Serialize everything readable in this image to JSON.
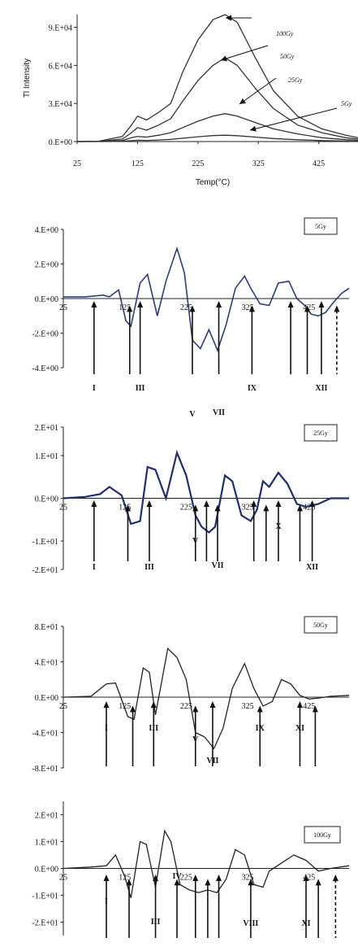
{
  "chart_data": [
    {
      "type": "line",
      "xlabel": "Temp(°C)",
      "ylabel": "Tl Intensity",
      "xlim": [
        25,
        490
      ],
      "ylim": [
        0,
        100000
      ],
      "xticks": [
        25,
        125,
        225,
        325,
        425
      ],
      "xtick_labels": [
        "25",
        "125",
        "225",
        "325",
        "425"
      ],
      "yticks": [
        0,
        30000,
        60000,
        90000
      ],
      "ytick_labels": [
        "0.E+00",
        "3.E+04",
        "6.E+04",
        "9.E+04"
      ],
      "x": [
        25,
        60,
        100,
        115,
        125,
        140,
        160,
        180,
        200,
        225,
        250,
        270,
        290,
        320,
        350,
        390,
        430,
        470,
        490
      ],
      "series": [
        {
          "name": "100Gy",
          "values": [
            0,
            200,
            4000,
            13000,
            20000,
            17000,
            23000,
            30000,
            55000,
            80000,
            96000,
            100000,
            94000,
            66000,
            40000,
            20000,
            10000,
            5000,
            3000
          ]
        },
        {
          "name": "50Gy",
          "values": [
            0,
            100,
            2000,
            7000,
            11000,
            9000,
            13000,
            18000,
            32000,
            48000,
            60000,
            66000,
            60000,
            42000,
            26000,
            13000,
            7000,
            3000,
            2000
          ]
        },
        {
          "name": "25Gy",
          "values": [
            0,
            50,
            800,
            3000,
            4000,
            3500,
            5000,
            7000,
            11000,
            16000,
            20000,
            22000,
            20000,
            15000,
            10000,
            6000,
            3000,
            1500,
            1000
          ]
        },
        {
          "name": "5Gy",
          "values": [
            0,
            10,
            200,
            700,
            1000,
            900,
            1200,
            1700,
            2600,
            3800,
            4700,
            5000,
            4600,
            3500,
            2400,
            1400,
            800,
            400,
            300
          ]
        }
      ]
    },
    {
      "type": "line",
      "legend": "5Gy",
      "xlim": [
        25,
        490
      ],
      "ylim": [
        -4,
        4
      ],
      "xticks": [
        25,
        125,
        225,
        325,
        425
      ],
      "xtick_labels": [
        "25",
        "125",
        "225",
        "325",
        "425"
      ],
      "yticks": [
        4,
        2,
        0,
        -2,
        -4
      ],
      "ytick_labels": [
        "4.E+00",
        "2.E+00",
        "0.E+00",
        "-2.E+00",
        "-4.E+00"
      ],
      "x": [
        25,
        60,
        90,
        100,
        115,
        127,
        135,
        150,
        162,
        178,
        192,
        210,
        222,
        235,
        248,
        262,
        276,
        290,
        305,
        320,
        330,
        345,
        360,
        375,
        392,
        405,
        418,
        428,
        440,
        452,
        465,
        478,
        490
      ],
      "values": [
        0.1,
        0.1,
        0.2,
        0.1,
        0.5,
        -1.3,
        -1.6,
        0.9,
        1.4,
        -1.0,
        1.0,
        2.9,
        1.5,
        -2.4,
        -2.9,
        -1.8,
        -3.0,
        -1.5,
        0.6,
        1.3,
        0.6,
        -0.3,
        -0.4,
        0.9,
        1.0,
        0.0,
        -0.4,
        -0.9,
        -1.0,
        -0.8,
        -0.2,
        0.3,
        0.6
      ],
      "peaks": [
        {
          "x": 75,
          "label": "I"
        },
        {
          "x": 133,
          "label": ""
        },
        {
          "x": 150,
          "label": "III"
        },
        {
          "x": 235,
          "label": "V"
        },
        {
          "x": 278,
          "label": "VII"
        },
        {
          "x": 332,
          "label": "IX"
        },
        {
          "x": 395,
          "label": ""
        },
        {
          "x": 422,
          "label": ""
        },
        {
          "x": 445,
          "label": "XII"
        },
        {
          "x": 470,
          "label": "",
          "dashed": true
        }
      ]
    },
    {
      "type": "line",
      "legend": "25Gy",
      "xlim": [
        25,
        490
      ],
      "ylim": [
        -25,
        25
      ],
      "xticks": [
        25,
        125,
        225,
        325,
        425
      ],
      "xtick_labels": [
        "25",
        "125",
        "225",
        "325",
        "425"
      ],
      "yticks": [
        25,
        15,
        0,
        -15,
        -25
      ],
      "ytick_labels": [
        "2.E+01",
        "1.E+01",
        "0.E+00",
        "-1.E+01",
        "-2.E+01"
      ],
      "x": [
        25,
        60,
        85,
        100,
        120,
        135,
        150,
        162,
        175,
        192,
        210,
        225,
        240,
        250,
        262,
        272,
        288,
        300,
        315,
        330,
        340,
        350,
        360,
        375,
        390,
        405,
        420,
        440,
        460,
        490
      ],
      "values": [
        0,
        0.5,
        1.5,
        4,
        1,
        -9,
        -8,
        11,
        10,
        0,
        16,
        8,
        -6,
        -10,
        -12,
        -10,
        8,
        6,
        -6,
        -8,
        -4,
        6,
        4,
        9,
        5,
        -2,
        -3,
        -2,
        0,
        0
      ],
      "peaks": [
        {
          "x": 75,
          "label": "I"
        },
        {
          "x": 130,
          "label": ""
        },
        {
          "x": 165,
          "label": "III"
        },
        {
          "x": 240,
          "label": "V"
        },
        {
          "x": 258,
          "label": ""
        },
        {
          "x": 276,
          "label": "VII"
        },
        {
          "x": 335,
          "label": ""
        },
        {
          "x": 355,
          "label": ""
        },
        {
          "x": 375,
          "label": "X"
        },
        {
          "x": 410,
          "label": ""
        },
        {
          "x": 430,
          "label": "XII"
        }
      ]
    },
    {
      "type": "line",
      "legend": "50Gy",
      "xlim": [
        25,
        490
      ],
      "ylim": [
        -80,
        80
      ],
      "xticks": [
        25,
        125,
        225,
        325,
        425
      ],
      "xtick_labels": [
        "25",
        "125",
        "225",
        "325",
        "425"
      ],
      "yticks": [
        80,
        40,
        0,
        -40,
        -80
      ],
      "ytick_labels": [
        "8.E+01",
        "4.E+01",
        "0.E+00",
        "-4.E+01",
        "-8.E+01"
      ],
      "x": [
        25,
        70,
        95,
        110,
        130,
        140,
        155,
        165,
        175,
        195,
        210,
        225,
        240,
        255,
        270,
        285,
        300,
        320,
        335,
        350,
        365,
        380,
        395,
        410,
        425,
        440,
        460,
        490
      ],
      "values": [
        0,
        1,
        15,
        16,
        -22,
        -25,
        33,
        28,
        -20,
        55,
        45,
        20,
        -40,
        -45,
        -58,
        -35,
        10,
        38,
        10,
        -10,
        -5,
        20,
        15,
        2,
        -2,
        -1,
        1,
        2
      ],
      "peaks": [
        {
          "x": 95,
          "label": "I"
        },
        {
          "x": 138,
          "label": ""
        },
        {
          "x": 172,
          "label": "III"
        },
        {
          "x": 240,
          "label": "V"
        },
        {
          "x": 268,
          "label": "VII"
        },
        {
          "x": 345,
          "label": "IX"
        },
        {
          "x": 410,
          "label": "XI"
        },
        {
          "x": 435,
          "label": ""
        }
      ]
    },
    {
      "type": "line",
      "legend": "100Gy",
      "xlim": [
        25,
        490
      ],
      "ylim": [
        -25,
        25
      ],
      "xticks": [
        25,
        125,
        225,
        325,
        425
      ],
      "xtick_labels": [
        "25",
        "125",
        "225",
        "325",
        "425"
      ],
      "yticks": [
        20,
        10,
        0,
        -10,
        -20
      ],
      "ytick_labels": [
        "2.E+01",
        "1.E+01",
        "0.E+00",
        "-1.E+01",
        "-2.E+01"
      ],
      "x": [
        25,
        70,
        95,
        110,
        125,
        135,
        150,
        160,
        175,
        190,
        200,
        215,
        230,
        245,
        260,
        275,
        290,
        305,
        320,
        335,
        350,
        360,
        380,
        400,
        420,
        440,
        460,
        490
      ],
      "values": [
        0,
        0.5,
        1,
        5,
        -3,
        -11,
        10,
        9,
        -7,
        14,
        10,
        -6,
        -8,
        -9,
        -8,
        -9,
        -4,
        7,
        5,
        -6,
        -7,
        -1,
        2,
        5,
        3,
        -1,
        0,
        1
      ],
      "peaks": [
        {
          "x": 95,
          "label": "I"
        },
        {
          "x": 132,
          "label": ""
        },
        {
          "x": 175,
          "label": "III"
        },
        {
          "x": 210,
          "label": "IV"
        },
        {
          "x": 240,
          "label": ""
        },
        {
          "x": 260,
          "label": ""
        },
        {
          "x": 278,
          "label": ""
        },
        {
          "x": 330,
          "label": "VIII"
        },
        {
          "x": 420,
          "label": "XI"
        },
        {
          "x": 440,
          "label": ""
        },
        {
          "x": 468,
          "label": "",
          "dashed": true
        }
      ]
    }
  ]
}
